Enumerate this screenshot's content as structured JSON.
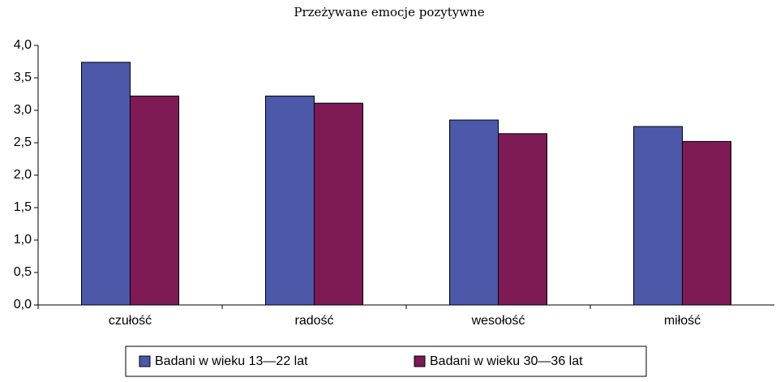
{
  "chart_data": {
    "type": "bar",
    "title": "Przeżywane emocje pozytywne",
    "categories": [
      "czułość",
      "radość",
      "wesołość",
      "miłość"
    ],
    "series": [
      {
        "name": "Badani w wieku 13—22 lat",
        "color": "#4c58a8",
        "values": [
          3.74,
          3.22,
          2.85,
          2.75
        ]
      },
      {
        "name": "Badani w wieku 30—36 lat",
        "color": "#7e1a56",
        "values": [
          3.22,
          3.11,
          2.64,
          2.52
        ]
      }
    ],
    "ylim": [
      0,
      4
    ],
    "yticks": [
      {
        "value": 0,
        "label": "0,0"
      },
      {
        "value": 0.5,
        "label": "0,5"
      },
      {
        "value": 1,
        "label": "1,0"
      },
      {
        "value": 1.5,
        "label": "1,5"
      },
      {
        "value": 2,
        "label": "2,0"
      },
      {
        "value": 2.5,
        "label": "2,5"
      },
      {
        "value": 3,
        "label": "3,0"
      },
      {
        "value": 3.5,
        "label": "3,5"
      },
      {
        "value": 4,
        "label": "4,0"
      }
    ],
    "legend": "bottom"
  }
}
